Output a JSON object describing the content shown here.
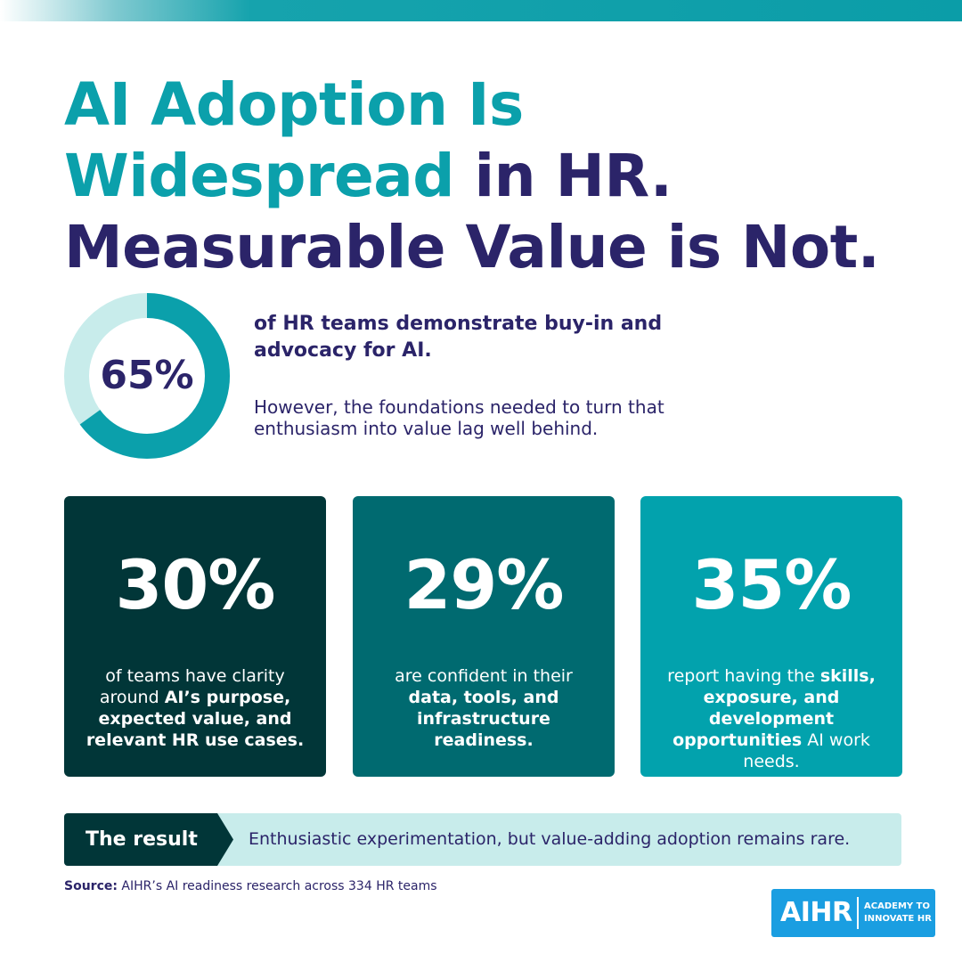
{
  "title": {
    "line1": "AI Adoption Is",
    "line2_accent": "Widespread",
    "line2_rest": " in HR.",
    "line3": "Measurable Value is Not."
  },
  "donut": {
    "value": 65,
    "label": "65%",
    "fill_color": "#0ba0ab",
    "track_color": "#c8eceb"
  },
  "lead": {
    "headline": "of HR teams demonstrate buy-in and advocacy for AI.",
    "subtext": "However, the foundations needed to turn that enthusiasm into value lag well behind."
  },
  "cards": [
    {
      "value": "30%",
      "text_before": "of teams have clarity around ",
      "text_bold": "AI’s purpose, expected value, and relevant HR use cases.",
      "text_after": "",
      "color": "#013638"
    },
    {
      "value": "29%",
      "text_before": "are confident in their ",
      "text_bold": "data, tools, and infrastructure readiness.",
      "text_after": "",
      "color": "#006a70"
    },
    {
      "value": "35%",
      "text_before": "report having the ",
      "text_bold": "skills, exposure, and development opportunities",
      "text_after": " AI work needs.",
      "color": "#02a2ad"
    }
  ],
  "result": {
    "label": "The result",
    "text": "Enthusiastic experimentation, but value-adding adoption remains rare."
  },
  "source": {
    "label": "Source:",
    "text": " AIHR’s AI readiness research across 334 HR teams"
  },
  "logo": {
    "wordmark": "AIHR",
    "tagline": "ACADEMY TO INNOVATE HR",
    "color": "#1a9ee1"
  }
}
